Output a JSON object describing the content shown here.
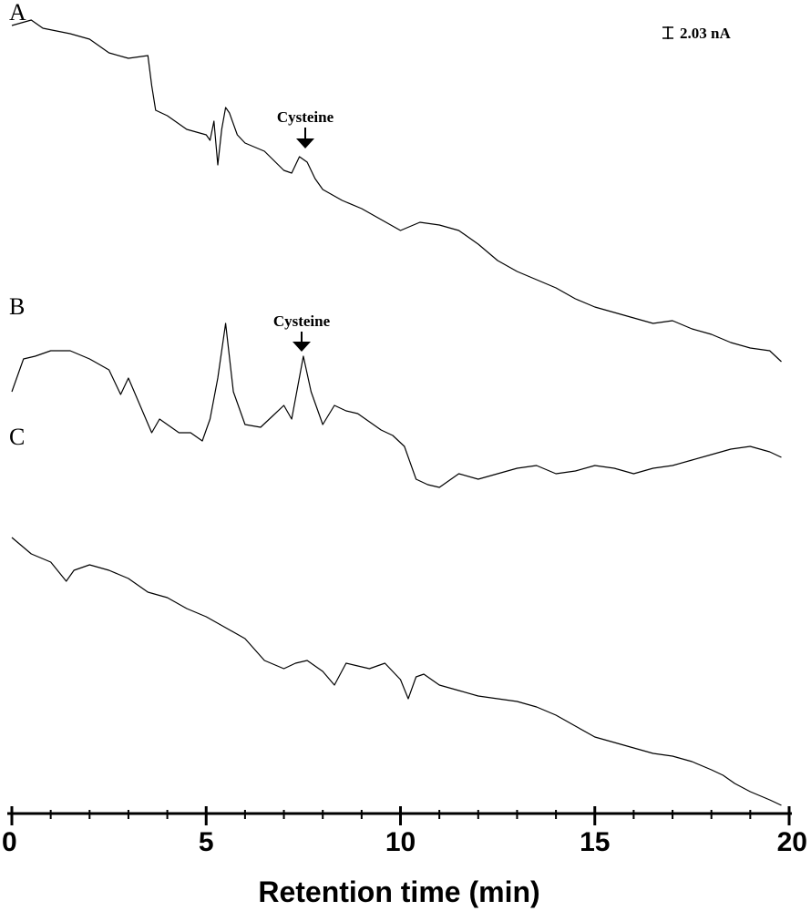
{
  "chart_data": {
    "type": "line",
    "xlabel": "Retention time (min)",
    "xlim": [
      0,
      20
    ],
    "x_ticks": [
      "0",
      "5",
      "10",
      "15",
      "20"
    ],
    "scale_bar": "2.03 nA",
    "panels": [
      {
        "label": "A",
        "annotation": "Cysteine",
        "annotation_x": 7.6,
        "x": [
          0,
          0.5,
          0.8,
          1.5,
          2,
          2.5,
          3,
          3.5,
          3.6,
          3.7,
          4,
          4.5,
          5,
          5.1,
          5.2,
          5.3,
          5.4,
          5.5,
          5.6,
          5.8,
          6,
          6.5,
          7,
          7.2,
          7.4,
          7.6,
          7.8,
          8,
          8.5,
          9,
          9.5,
          10,
          10.5,
          11,
          11.5,
          12,
          12.5,
          13,
          13.5,
          14,
          14.5,
          15,
          15.5,
          16,
          16.5,
          17,
          17.5,
          18,
          18.5,
          19,
          19.5,
          19.8
        ],
        "y": [
          10.8,
          11.0,
          10.7,
          10.5,
          10.3,
          9.8,
          9.6,
          9.7,
          8.6,
          7.7,
          7.5,
          7.0,
          6.8,
          6.6,
          7.3,
          5.7,
          7.0,
          7.8,
          7.6,
          6.8,
          6.5,
          6.2,
          5.5,
          5.4,
          6.0,
          5.8,
          5.2,
          4.8,
          4.4,
          4.1,
          3.7,
          3.3,
          3.6,
          3.5,
          3.3,
          2.8,
          2.2,
          1.8,
          1.5,
          1.2,
          0.8,
          0.5,
          0.3,
          0.1,
          -0.1,
          0.0,
          -0.3,
          -0.5,
          -0.8,
          -1.0,
          -1.1,
          -1.5
        ]
      },
      {
        "label": "B",
        "annotation": "Cysteine",
        "annotation_x": 7.5,
        "x": [
          0,
          0.3,
          0.6,
          1.0,
          1.5,
          2.0,
          2.5,
          2.8,
          3.0,
          3.3,
          3.6,
          3.8,
          4.0,
          4.3,
          4.6,
          4.9,
          5.1,
          5.3,
          5.5,
          5.7,
          6.0,
          6.4,
          6.7,
          7.0,
          7.2,
          7.5,
          7.7,
          8.0,
          8.3,
          8.6,
          8.9,
          9.2,
          9.5,
          9.8,
          10.1,
          10.4,
          10.7,
          11.0,
          11.5,
          12.0,
          12.5,
          13.0,
          13.5,
          14.0,
          14.5,
          15.0,
          15.5,
          16.0,
          16.5,
          17.0,
          17.5,
          18.0,
          18.5,
          19.0,
          19.5,
          19.8
        ],
        "y": [
          7.0,
          8.2,
          8.3,
          8.5,
          8.5,
          8.2,
          7.8,
          6.9,
          7.5,
          6.5,
          5.5,
          6.0,
          5.8,
          5.5,
          5.5,
          5.2,
          6.0,
          7.5,
          9.5,
          7.0,
          5.8,
          5.7,
          6.1,
          6.5,
          6.0,
          8.3,
          7.0,
          5.8,
          6.5,
          6.3,
          6.2,
          5.9,
          5.6,
          5.4,
          5.0,
          3.8,
          3.6,
          3.5,
          4.0,
          3.8,
          4.0,
          4.2,
          4.3,
          4.0,
          4.1,
          4.3,
          4.2,
          4.0,
          4.2,
          4.3,
          4.5,
          4.7,
          4.9,
          5.0,
          4.8,
          4.6
        ]
      },
      {
        "label": "C",
        "x": [
          0,
          0.5,
          1.0,
          1.4,
          1.6,
          2.0,
          2.5,
          3.0,
          3.5,
          4.0,
          4.5,
          5.0,
          5.5,
          6.0,
          6.5,
          7.0,
          7.3,
          7.6,
          8.0,
          8.3,
          8.6,
          8.9,
          9.2,
          9.6,
          10.0,
          10.2,
          10.4,
          10.6,
          10.8,
          11.0,
          11.5,
          12.0,
          12.5,
          13.0,
          13.5,
          14.0,
          14.5,
          15.0,
          15.5,
          16.0,
          16.5,
          17.0,
          17.5,
          18.0,
          18.3,
          18.6,
          19.0,
          19.5,
          19.8
        ],
        "y": [
          8.5,
          7.9,
          7.6,
          6.9,
          7.3,
          7.5,
          7.3,
          7.0,
          6.5,
          6.3,
          5.9,
          5.6,
          5.2,
          4.8,
          4.0,
          3.7,
          3.9,
          4.0,
          3.6,
          3.1,
          3.9,
          3.8,
          3.7,
          3.9,
          3.3,
          2.6,
          3.4,
          3.5,
          3.3,
          3.1,
          2.9,
          2.7,
          2.6,
          2.5,
          2.3,
          2.0,
          1.6,
          1.2,
          1.0,
          0.8,
          0.6,
          0.5,
          0.3,
          0.0,
          -0.2,
          -0.5,
          -0.8,
          -1.1,
          -1.3
        ]
      }
    ]
  }
}
